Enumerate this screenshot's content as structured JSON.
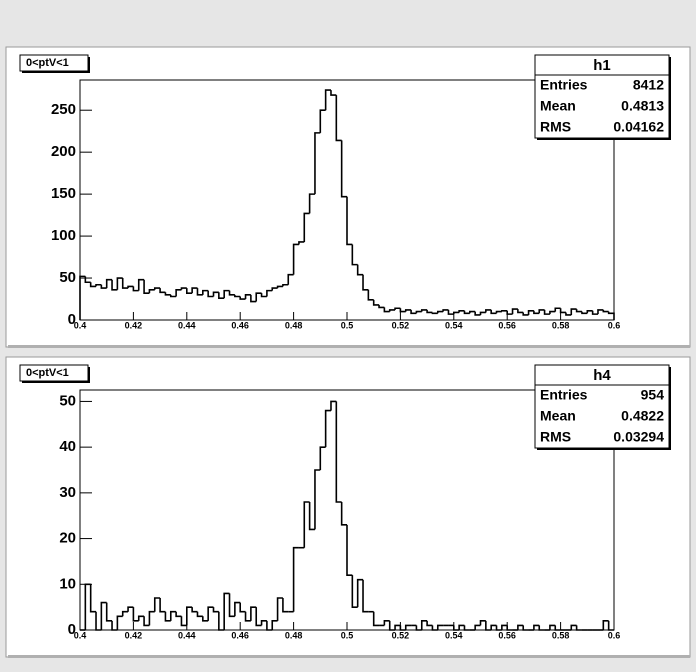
{
  "chart_data": [
    {
      "type": "histogram",
      "title": "0<ptV<1",
      "stats": {
        "name": "h1",
        "rows": [
          {
            "label": "Entries",
            "value": 8412
          },
          {
            "label": "Mean",
            "value": 0.4813
          },
          {
            "label": "RMS",
            "value": 0.04162
          }
        ]
      },
      "bins": [
        0.4,
        0.402,
        0.404,
        0.406,
        0.408,
        0.41,
        0.412,
        0.414,
        0.416,
        0.418,
        0.42,
        0.422,
        0.424,
        0.426,
        0.428,
        0.43,
        0.432,
        0.434,
        0.436,
        0.438,
        0.44,
        0.442,
        0.444,
        0.446,
        0.448,
        0.45,
        0.452,
        0.454,
        0.456,
        0.458,
        0.46,
        0.462,
        0.464,
        0.466,
        0.468,
        0.47,
        0.472,
        0.474,
        0.476,
        0.478,
        0.48,
        0.482,
        0.484,
        0.486,
        0.488,
        0.49,
        0.492,
        0.494,
        0.496,
        0.498,
        0.5,
        0.502,
        0.504,
        0.506,
        0.508,
        0.51,
        0.512,
        0.514,
        0.516,
        0.518,
        0.52,
        0.522,
        0.524,
        0.526,
        0.528,
        0.53,
        0.532,
        0.534,
        0.536,
        0.538,
        0.54,
        0.542,
        0.544,
        0.546,
        0.548,
        0.55,
        0.552,
        0.554,
        0.556,
        0.558,
        0.56,
        0.562,
        0.564,
        0.566,
        0.568,
        0.57,
        0.572,
        0.574,
        0.576,
        0.578,
        0.58,
        0.582,
        0.584,
        0.586,
        0.588,
        0.59,
        0.592,
        0.594,
        0.596,
        0.598,
        0.6
      ],
      "counts": [
        52,
        45,
        40,
        42,
        38,
        48,
        36,
        50,
        38,
        40,
        35,
        48,
        32,
        36,
        38,
        33,
        30,
        28,
        36,
        38,
        32,
        38,
        30,
        35,
        28,
        33,
        26,
        35,
        30,
        28,
        25,
        30,
        22,
        32,
        28,
        35,
        38,
        40,
        42,
        54,
        90,
        93,
        127,
        150,
        223,
        250,
        274,
        268,
        214,
        147,
        90,
        66,
        54,
        36,
        24,
        18,
        15,
        10,
        12,
        14,
        10,
        12,
        8,
        10,
        12,
        9,
        8,
        10,
        12,
        7,
        9,
        11,
        8,
        10,
        6,
        9,
        12,
        8,
        10,
        11,
        7,
        13,
        9,
        6,
        11,
        8,
        12,
        7,
        10,
        14,
        9,
        6,
        13,
        10,
        8,
        11,
        7,
        12,
        10,
        8
      ],
      "color": "#000000",
      "xlim": [
        0.4,
        0.6
      ],
      "xticks": [
        0.4,
        0.42,
        0.44,
        0.46,
        0.48,
        0.5,
        0.52,
        0.54,
        0.56,
        0.58,
        0.6
      ],
      "ylim": [
        0,
        286
      ],
      "yticks": [
        0,
        50,
        100,
        150,
        200,
        250
      ]
    },
    {
      "type": "histogram",
      "title": "0<ptV<1",
      "stats": {
        "name": "h4",
        "rows": [
          {
            "label": "Entries",
            "value": 954
          },
          {
            "label": "Mean",
            "value": 0.4822
          },
          {
            "label": "RMS",
            "value": 0.03294
          }
        ]
      },
      "bins": [
        0.4,
        0.402,
        0.404,
        0.406,
        0.408,
        0.41,
        0.412,
        0.414,
        0.416,
        0.418,
        0.42,
        0.422,
        0.424,
        0.426,
        0.428,
        0.43,
        0.432,
        0.434,
        0.436,
        0.438,
        0.44,
        0.442,
        0.444,
        0.446,
        0.448,
        0.45,
        0.452,
        0.454,
        0.456,
        0.458,
        0.46,
        0.462,
        0.464,
        0.466,
        0.468,
        0.47,
        0.472,
        0.474,
        0.476,
        0.478,
        0.48,
        0.482,
        0.484,
        0.486,
        0.488,
        0.49,
        0.492,
        0.494,
        0.496,
        0.498,
        0.5,
        0.502,
        0.504,
        0.506,
        0.508,
        0.51,
        0.512,
        0.514,
        0.516,
        0.518,
        0.52,
        0.522,
        0.524,
        0.526,
        0.528,
        0.53,
        0.532,
        0.534,
        0.536,
        0.538,
        0.54,
        0.542,
        0.544,
        0.546,
        0.548,
        0.55,
        0.552,
        0.554,
        0.556,
        0.558,
        0.56,
        0.562,
        0.564,
        0.566,
        0.568,
        0.57,
        0.572,
        0.574,
        0.576,
        0.578,
        0.58,
        0.582,
        0.584,
        0.586,
        0.588,
        0.59,
        0.592,
        0.594,
        0.596,
        0.598,
        0.6
      ],
      "counts": [
        0,
        10,
        4,
        0,
        6,
        2,
        0,
        3,
        4,
        5,
        2,
        3,
        1,
        4,
        7,
        4,
        2,
        4,
        3,
        1,
        5,
        4,
        3,
        2,
        5,
        4,
        0,
        8,
        3,
        6,
        4,
        2,
        5,
        1,
        2,
        0,
        2,
        7,
        4,
        4,
        18,
        18,
        28,
        22,
        35,
        40,
        48,
        50,
        28,
        23,
        12,
        5,
        11,
        4,
        4,
        1,
        1,
        2,
        0,
        1,
        0,
        1,
        1,
        0,
        2,
        1,
        0,
        1,
        1,
        1,
        0,
        1,
        0,
        0,
        1,
        2,
        0,
        1,
        0,
        1,
        0,
        0,
        1,
        0,
        0,
        1,
        0,
        0,
        1,
        0,
        0,
        0,
        1,
        0,
        0,
        0,
        0,
        0,
        2,
        0
      ],
      "color": "#000000",
      "xlim": [
        0.4,
        0.6
      ],
      "xticks": [
        0.4,
        0.42,
        0.44,
        0.46,
        0.48,
        0.5,
        0.52,
        0.54,
        0.56,
        0.58,
        0.6
      ],
      "ylim": [
        0,
        52.5
      ],
      "yticks": [
        0,
        10,
        20,
        30,
        40,
        50
      ]
    }
  ]
}
